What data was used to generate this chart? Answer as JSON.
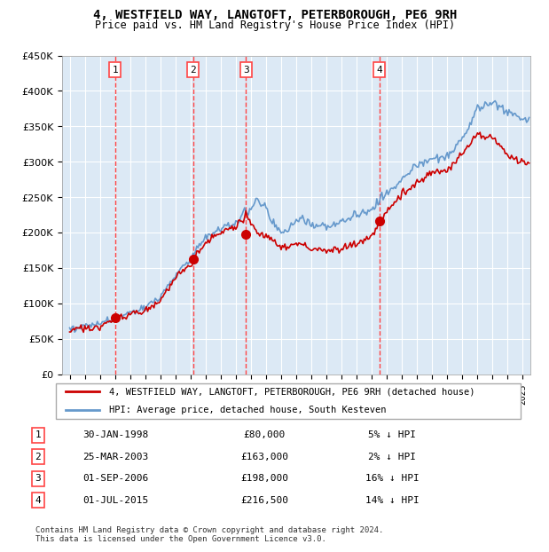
{
  "title": "4, WESTFIELD WAY, LANGTOFT, PETERBOROUGH, PE6 9RH",
  "subtitle": "Price paid vs. HM Land Registry's House Price Index (HPI)",
  "xlabel": "",
  "ylabel": "",
  "background_color": "#ffffff",
  "plot_bg_color": "#dce9f5",
  "grid_color": "#ffffff",
  "sale_dates": [
    "1998-01-30",
    "2003-03-25",
    "2006-09-01",
    "2015-07-01"
  ],
  "sale_prices": [
    80000,
    163000,
    198000,
    216500
  ],
  "sale_labels": [
    "1",
    "2",
    "3",
    "4"
  ],
  "sale_label_info": [
    {
      "num": "1",
      "date": "30-JAN-1998",
      "price": "£80,000",
      "hpi": "5% ↓ HPI"
    },
    {
      "num": "2",
      "date": "25-MAR-2003",
      "price": "£163,000",
      "hpi": "2% ↓ HPI"
    },
    {
      "num": "3",
      "date": "01-SEP-2006",
      "price": "£198,000",
      "hpi": "16% ↓ HPI"
    },
    {
      "num": "4",
      "date": "01-JUL-2015",
      "price": "£216,500",
      "hpi": "14% ↓ HPI"
    }
  ],
  "red_line_color": "#cc0000",
  "blue_line_color": "#6699cc",
  "sale_dot_color": "#cc0000",
  "dashed_line_color": "#ff4444",
  "legend_box_color": "#cc0000",
  "ylim": [
    0,
    450000
  ],
  "yticks": [
    0,
    50000,
    100000,
    150000,
    200000,
    250000,
    300000,
    350000,
    400000,
    450000
  ],
  "footnote": "Contains HM Land Registry data © Crown copyright and database right 2024.\nThis data is licensed under the Open Government Licence v3.0."
}
